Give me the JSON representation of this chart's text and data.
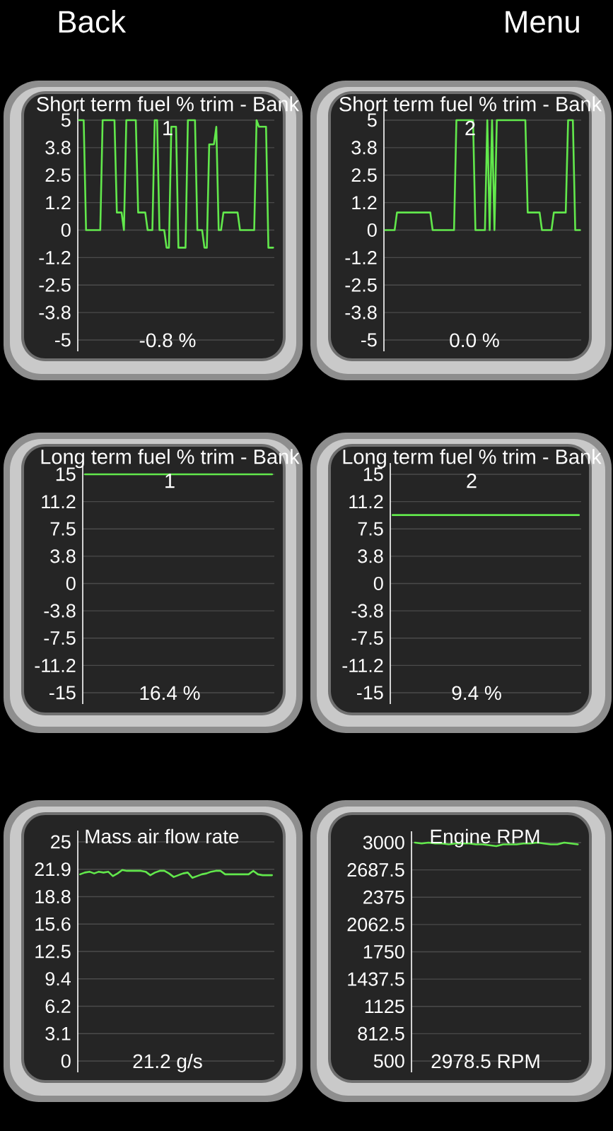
{
  "chart_data": [
    {
      "type": "other",
      "annotations": [
        "Back",
        "Menu"
      ]
    },
    {
      "type": "line",
      "title": "Short term fuel % trim - Bank 1",
      "annotations": [
        "-0.8 %"
      ],
      "categories": [
        null,
        null,
        null,
        null,
        null,
        null,
        null,
        null,
        null,
        null,
        null,
        null,
        null,
        null,
        null,
        null,
        null,
        null,
        null,
        null,
        null,
        null,
        null,
        null,
        null,
        null,
        null,
        null,
        null,
        null,
        null,
        null,
        null,
        null,
        null,
        null,
        null,
        null,
        null,
        null,
        null,
        null,
        null,
        null,
        null,
        null,
        null,
        null,
        null,
        null,
        null,
        null,
        null,
        null,
        null,
        null,
        null,
        null,
        null,
        null,
        null,
        null,
        null,
        null,
        null,
        null,
        null,
        null,
        null,
        null,
        null,
        null,
        null,
        null,
        null,
        null,
        null,
        null,
        null,
        null,
        null,
        null,
        null
      ],
      "values": [
        5,
        5,
        5,
        0,
        0,
        0,
        0,
        0,
        0,
        0,
        5,
        5,
        5,
        5,
        5,
        5,
        0.8,
        0.8,
        0.8,
        0,
        5,
        5,
        5,
        5,
        5,
        0.8,
        0.8,
        0.8,
        0.8,
        0,
        0,
        0,
        5,
        5,
        0,
        0,
        0,
        -0.8,
        -0.8,
        4.7,
        4.7,
        4.7,
        -0.8,
        -0.8,
        -0.8,
        -0.8,
        5,
        5,
        5,
        5,
        0,
        0,
        0,
        -0.8,
        -0.8,
        3.9,
        3.9,
        3.9,
        4.7,
        0,
        0,
        0.8,
        0.8,
        0.8,
        0.8,
        0.8,
        0.8,
        0.8,
        0,
        0,
        0,
        0,
        0,
        0,
        0,
        5,
        4.7,
        4.7,
        4.7,
        4.7,
        -0.8,
        -0.8,
        -0.8
      ],
      "color": "#62e84c",
      "ylim": [
        -5,
        5
      ],
      "yticks": [
        -5,
        {
          "value": -3.75,
          "label": "-3.8"
        },
        -2.5,
        {
          "value": -1.25,
          "label": "-1.2"
        },
        0,
        {
          "value": 1.25,
          "label": "1.2"
        },
        2.5,
        {
          "value": 3.75,
          "label": "3.8"
        },
        5
      ],
      "grid": "y"
    },
    {
      "type": "line",
      "title": "Short term fuel % trim - Bank 2",
      "annotations": [
        "0.0 %"
      ],
      "categories": [
        null,
        null,
        null,
        null,
        null,
        null,
        null,
        null,
        null,
        null,
        null,
        null,
        null,
        null,
        null,
        null,
        null,
        null,
        null,
        null,
        null,
        null,
        null,
        null,
        null,
        null,
        null,
        null,
        null,
        null,
        null,
        null,
        null,
        null,
        null,
        null,
        null,
        null,
        null,
        null,
        null,
        null,
        null,
        null,
        null,
        null,
        null,
        null,
        null,
        null,
        null,
        null,
        null,
        null,
        null,
        null,
        null,
        null,
        null,
        null,
        null,
        null,
        null,
        null,
        null,
        null,
        null,
        null,
        null,
        null,
        null,
        null,
        null,
        null,
        null,
        null,
        null,
        null,
        null,
        null,
        null,
        null,
        null
      ],
      "values": [
        0,
        0,
        0,
        0,
        0,
        0.8,
        0.8,
        0.8,
        0.8,
        0.8,
        0.8,
        0.8,
        0.8,
        0.8,
        0.8,
        0.8,
        0.8,
        0.8,
        0.8,
        0.8,
        0,
        0,
        0,
        0,
        0,
        0,
        0,
        0,
        0,
        0,
        5,
        5,
        5,
        5,
        5,
        5,
        5,
        5,
        0,
        0,
        0,
        0,
        0,
        5,
        0,
        5,
        0,
        5,
        5,
        5,
        5,
        5,
        5,
        5,
        5,
        5,
        5,
        5,
        5,
        5,
        0.8,
        0.8,
        0.8,
        0.8,
        0.8,
        0.8,
        0,
        0,
        0,
        0,
        0,
        0.8,
        0.8,
        0.8,
        0.8,
        0.8,
        0.8,
        5,
        5,
        5,
        0,
        0,
        0
      ],
      "color": "#62e84c",
      "ylim": [
        -5,
        5
      ],
      "yticks": [
        -5,
        {
          "value": -3.75,
          "label": "-3.8"
        },
        -2.5,
        {
          "value": -1.25,
          "label": "-1.2"
        },
        0,
        {
          "value": 1.25,
          "label": "1.2"
        },
        2.5,
        {
          "value": 3.75,
          "label": "3.8"
        },
        5
      ],
      "grid": "y"
    },
    {
      "type": "line",
      "title": "Long term fuel % trim - Bank 1",
      "annotations": [
        "16.4 %"
      ],
      "categories": [
        null,
        null,
        null,
        null,
        null,
        null,
        null,
        null,
        null,
        null,
        null,
        null,
        null,
        null,
        null,
        null,
        null,
        null,
        null,
        null,
        null,
        null,
        null,
        null,
        null,
        null,
        null,
        null,
        null,
        null,
        null,
        null,
        null,
        null,
        null,
        null,
        null,
        null,
        null,
        null,
        null,
        null
      ],
      "values": [
        15,
        15,
        15,
        15,
        15,
        15,
        15,
        15,
        15,
        15,
        15,
        15,
        15,
        15,
        15,
        15,
        15,
        15,
        15,
        15,
        15,
        15,
        15,
        15,
        15,
        15,
        15,
        15,
        15,
        15,
        15,
        15,
        15,
        15,
        15,
        15,
        15,
        15,
        15,
        15,
        15,
        15
      ],
      "color": "#62e84c",
      "ylim": [
        -15,
        15
      ],
      "yticks": [
        -15,
        {
          "value": -11.25,
          "label": "-11.2"
        },
        -7.5,
        {
          "value": -3.75,
          "label": "-3.8"
        },
        0,
        {
          "value": 3.75,
          "label": "3.8"
        },
        7.5,
        {
          "value": 11.25,
          "label": "11.2"
        },
        15
      ],
      "grid": "y"
    },
    {
      "type": "line",
      "title": "Long term fuel % trim - Bank 2",
      "annotations": [
        "9.4 %"
      ],
      "categories": [
        null,
        null,
        null,
        null,
        null,
        null,
        null,
        null,
        null,
        null,
        null,
        null,
        null,
        null,
        null,
        null,
        null,
        null,
        null,
        null,
        null,
        null,
        null,
        null,
        null,
        null,
        null,
        null,
        null,
        null,
        null,
        null,
        null,
        null,
        null,
        null,
        null,
        null,
        null,
        null,
        null,
        null
      ],
      "values": [
        9.4,
        9.4,
        9.4,
        9.4,
        9.4,
        9.4,
        9.4,
        9.4,
        9.4,
        9.4,
        9.4,
        9.4,
        9.4,
        9.4,
        9.4,
        9.4,
        9.4,
        9.4,
        9.4,
        9.4,
        9.4,
        9.4,
        9.4,
        9.4,
        9.4,
        9.4,
        9.4,
        9.4,
        9.4,
        9.4,
        9.4,
        9.4,
        9.4,
        9.4,
        9.4,
        9.4,
        9.4,
        9.4,
        9.4,
        9.4,
        9.4,
        9.4
      ],
      "color": "#62e84c",
      "ylim": [
        -15,
        15
      ],
      "yticks": [
        -15,
        {
          "value": -11.25,
          "label": "-11.2"
        },
        -7.5,
        {
          "value": -3.75,
          "label": "-3.8"
        },
        0,
        {
          "value": 3.75,
          "label": "3.8"
        },
        7.5,
        {
          "value": 11.25,
          "label": "11.2"
        },
        15
      ],
      "grid": "y"
    },
    {
      "type": "line",
      "title": "Mass air flow rate",
      "annotations": [
        "21.2 g/s"
      ],
      "categories": [
        null,
        null,
        null,
        null,
        null,
        null,
        null,
        null,
        null,
        null,
        null,
        null,
        null,
        null,
        null,
        null,
        null,
        null,
        null,
        null,
        null,
        null,
        null,
        null,
        null,
        null,
        null,
        null,
        null,
        null,
        null,
        null,
        null,
        null,
        null,
        null,
        null,
        null,
        null,
        null,
        null,
        null
      ],
      "values": [
        21.3,
        21.5,
        21.6,
        21.4,
        21.6,
        21.5,
        21.6,
        21.1,
        21.4,
        21.8,
        21.7,
        21.7,
        21.7,
        21.7,
        21.6,
        21.2,
        21.5,
        21.7,
        21.7,
        21.4,
        21.0,
        21.2,
        21.4,
        21.5,
        20.9,
        21.1,
        21.3,
        21.4,
        21.6,
        21.7,
        21.7,
        21.3,
        21.3,
        21.3,
        21.3,
        21.3,
        21.3,
        21.7,
        21.3,
        21.2,
        21.2,
        21.2
      ],
      "color": "#62e84c",
      "ylim": [
        0,
        25
      ],
      "yticks": [
        0,
        {
          "value": 3.125,
          "label": "3.1"
        },
        {
          "value": 6.25,
          "label": "6.2"
        },
        {
          "value": 9.375,
          "label": "9.4"
        },
        12.5,
        {
          "value": 15.625,
          "label": "15.6"
        },
        {
          "value": 18.75,
          "label": "18.8"
        },
        {
          "value": 21.875,
          "label": "21.9"
        },
        25
      ],
      "grid": "y"
    },
    {
      "type": "line",
      "title": "Engine RPM",
      "annotations": [
        "2978.5 RPM"
      ],
      "categories": [
        null,
        null,
        null,
        null,
        null,
        null,
        null,
        null,
        null,
        null,
        null,
        null,
        null,
        null,
        null,
        null,
        null,
        null,
        null,
        null,
        null,
        null,
        null,
        null,
        null
      ],
      "values": [
        3000,
        2990,
        3000,
        2990,
        2990,
        2980,
        2990,
        2990,
        2990,
        2980,
        2980,
        2970,
        2960,
        2980,
        2980,
        2980,
        2990,
        2990,
        3000,
        2990,
        2980,
        2980,
        3000,
        2990,
        2980
      ],
      "color": "#62e84c",
      "ylim": [
        500,
        3000
      ],
      "yticks": [
        500,
        812.5,
        1125,
        1437.5,
        1750,
        2062.5,
        2375,
        2687.5,
        3000
      ],
      "grid": "y"
    }
  ]
}
